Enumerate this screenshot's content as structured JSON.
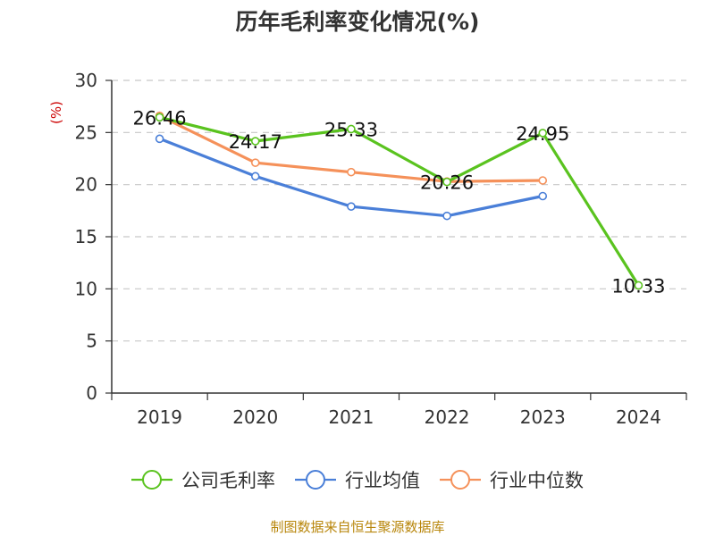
{
  "chart_data": {
    "type": "line",
    "title": "历年毛利率变化情况(%)",
    "ylabel": "(%)",
    "categories": [
      "2019",
      "2020",
      "2021",
      "2022",
      "2023",
      "2024"
    ],
    "ylim": [
      0,
      30
    ],
    "yticks": [
      0,
      5,
      10,
      15,
      20,
      25,
      30
    ],
    "grid": true,
    "legend_position": "bottom",
    "series": [
      {
        "name": "公司毛利率",
        "color": "#5ac31f",
        "values": [
          26.46,
          24.17,
          25.33,
          20.26,
          24.95,
          10.33
        ],
        "labels": [
          "26.46",
          "24.17",
          "25.33",
          "20.26",
          "24.95",
          "10.33"
        ]
      },
      {
        "name": "行业均值",
        "color": "#4a7fd8",
        "values": [
          24.4,
          20.8,
          17.9,
          17.0,
          18.9,
          null
        ]
      },
      {
        "name": "行业中位数",
        "color": "#f5915a",
        "values": [
          26.6,
          22.1,
          21.2,
          20.3,
          20.4,
          null
        ]
      }
    ],
    "source": "制图数据来自恒生聚源数据库"
  }
}
